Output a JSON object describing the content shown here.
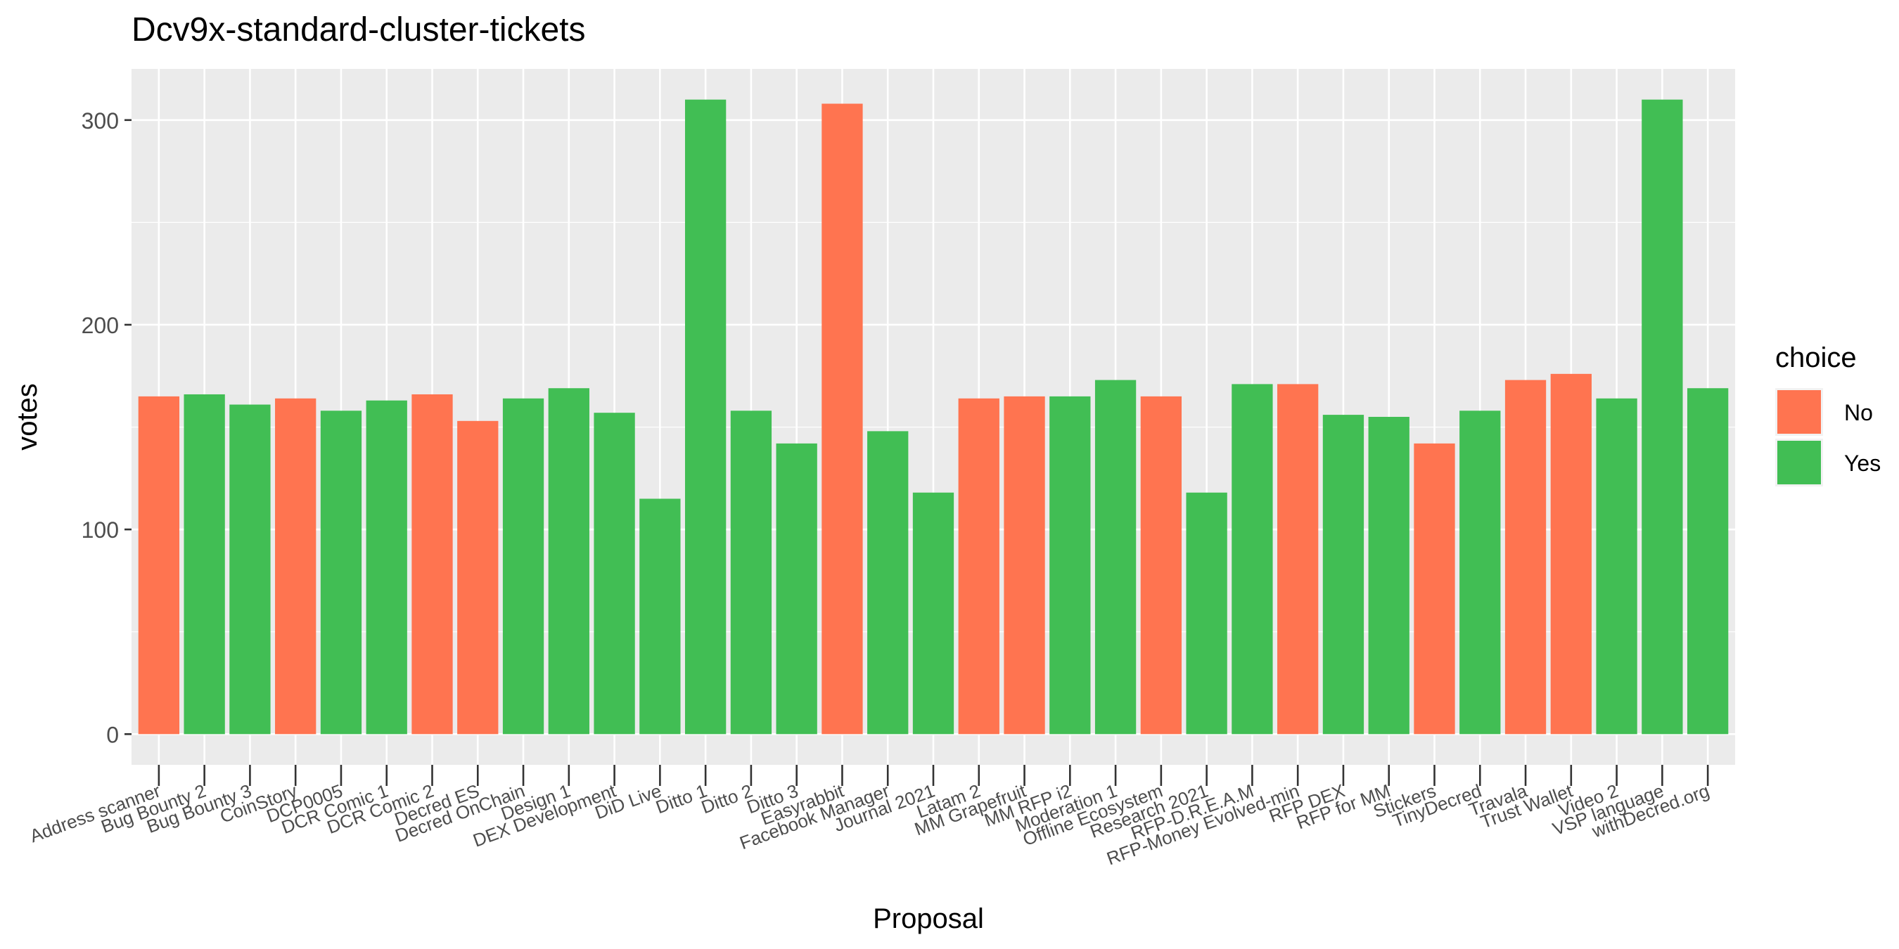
{
  "chart_data": {
    "type": "bar",
    "title": "Dcv9x-standard-cluster-tickets",
    "xlabel": "Proposal",
    "ylabel": "votes",
    "ylim": [
      -15,
      325
    ],
    "yticks": [
      0,
      100,
      200,
      300
    ],
    "grid": true,
    "legend": {
      "title": "choice",
      "placement": "right",
      "entries": [
        {
          "label": "No",
          "color": "#FF7450"
        },
        {
          "label": "Yes",
          "color": "#41BE54"
        }
      ]
    },
    "categories": [
      "Address scanner",
      "Bug Bounty 2",
      "Bug Bounty 3",
      "CoinStory",
      "DCP0005",
      "DCR Comic 1",
      "DCR Comic 2",
      "Decred ES",
      "Decred OnChain",
      "Design 1",
      "DEX Development",
      "DiD Live",
      "Ditto 1",
      "Ditto 2",
      "Ditto 3",
      "Easyrabbit",
      "Facebook Manager",
      "Journal 2021",
      "Latam 2",
      "MM Grapefruit",
      "MM RFP i2",
      "Moderation 1",
      "Offline Ecosystem",
      "Research 2021",
      "RFP-D.R.E.A.M",
      "RFP-Money Evolved-min",
      "RFP DEX",
      "RFP for MM",
      "Stickers",
      "TinyDecred",
      "Travala",
      "Trust Wallet",
      "Video 2",
      "VSP language",
      "withDecred.org"
    ],
    "choices": [
      "No",
      "Yes",
      "Yes",
      "No",
      "Yes",
      "Yes",
      "No",
      "No",
      "Yes",
      "Yes",
      "Yes",
      "Yes",
      "Yes",
      "Yes",
      "Yes",
      "No",
      "Yes",
      "Yes",
      "No",
      "No",
      "Yes",
      "Yes",
      "No",
      "Yes",
      "Yes",
      "No",
      "Yes",
      "Yes",
      "No",
      "Yes",
      "No",
      "No",
      "Yes",
      "Yes",
      "Yes"
    ],
    "values": [
      165,
      166,
      161,
      164,
      158,
      163,
      166,
      153,
      164,
      169,
      157,
      115,
      310,
      158,
      142,
      308,
      148,
      118,
      164,
      165,
      165,
      173,
      165,
      118,
      171,
      171,
      156,
      155,
      142,
      158,
      173,
      176,
      164,
      310,
      169
    ]
  }
}
